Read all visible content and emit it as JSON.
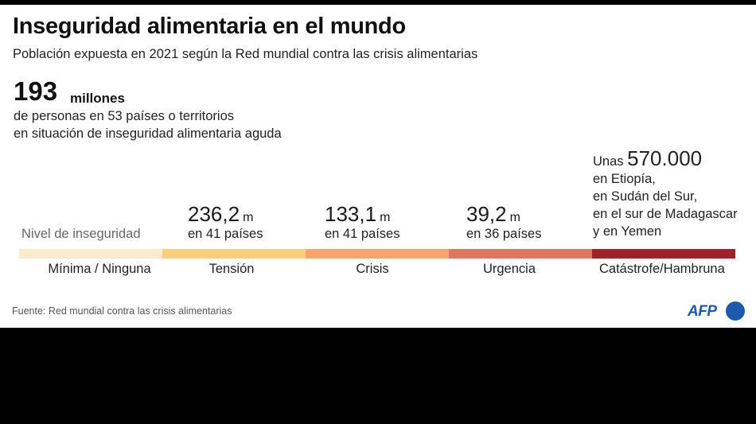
{
  "chart_data": {
    "type": "table",
    "title": "Inseguridad alimentaria en el mundo",
    "subtitle": "Población expuesta en 2021 según la Red mundial contra las crisis alimentarias",
    "headline": {
      "value": "193",
      "unit": "millones",
      "line1": "de personas en 53 países o territorios",
      "line2": "en situación de inseguridad alimentaria aguda"
    },
    "scale_label": "Nivel de inseguridad",
    "levels": [
      {
        "name": "Mínima / Ninguna",
        "color": "#fdebd0",
        "value": null,
        "value_label": "",
        "unit": "",
        "countries": ""
      },
      {
        "name": "Tensión",
        "color": "#fbcf7a",
        "value": 236.2,
        "value_label": "236,2",
        "unit": "m",
        "countries": "en 41 países"
      },
      {
        "name": "Crisis",
        "color": "#f6a56c",
        "value": 133.1,
        "value_label": "133,1",
        "unit": "m",
        "countries": "en 41 países"
      },
      {
        "name": "Urgencia",
        "color": "#e0745d",
        "value": 39.2,
        "value_label": "39,2",
        "unit": "m",
        "countries": "en 36 países"
      },
      {
        "name": "Catástrofe/Hambruna",
        "color": "#9e2128",
        "value": 0.57,
        "value_label": "570.000",
        "unit": "",
        "countries": ""
      }
    ],
    "catastrophe_note": {
      "prefix": "Unas",
      "number": "570.000",
      "lines": [
        "en Etiopía,",
        "en Sudán del Sur,",
        "en el sur de Madagascar",
        "y en Yemen"
      ]
    },
    "source": "Fuente: Red mundial contra las crisis alimentarias"
  },
  "logo": {
    "text": "AFP",
    "color": "#1a5bb0"
  }
}
